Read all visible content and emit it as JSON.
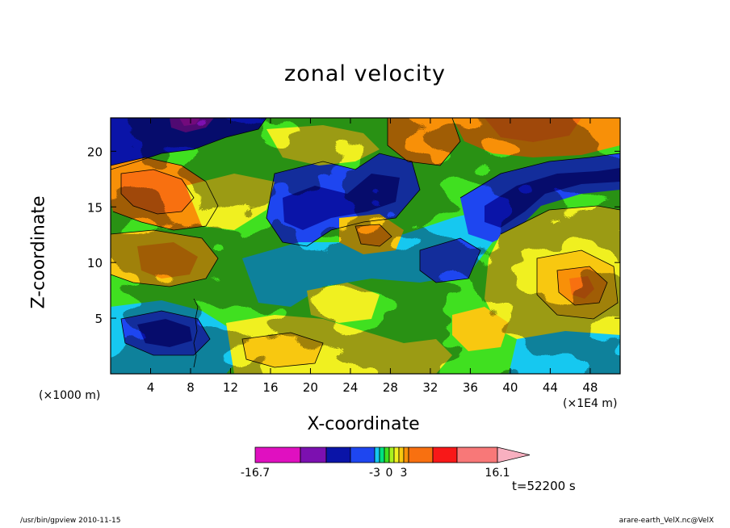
{
  "chart_data": {
    "type": "heatmap",
    "title": "zonal velocity",
    "xlabel": "X-coordinate",
    "ylabel": "Z-coordinate",
    "x_unit_left": "(×1000 m)",
    "x_unit_right": "(×1E4 m)",
    "xlim": [
      0,
      51
    ],
    "ylim": [
      0,
      23
    ],
    "x_ticks": [
      4,
      8,
      12,
      16,
      20,
      24,
      28,
      32,
      36,
      40,
      44,
      48
    ],
    "x_tick_labels": [
      "4",
      "8",
      "12",
      "16",
      "20",
      "24",
      "28",
      "32",
      "36",
      "40",
      "44",
      "48"
    ],
    "y_ticks": [
      5,
      10,
      15,
      20
    ],
    "y_tick_labels": [
      "5",
      "10",
      "15",
      "20"
    ],
    "colorbar": {
      "min": -16.7,
      "max": 16.1,
      "levels": [
        -16.7,
        -12,
        -9,
        -6,
        -3,
        -2,
        -1,
        0,
        1,
        2,
        3,
        6,
        9,
        12,
        16.1
      ],
      "colors": [
        "#e010c0",
        "#7c10b0",
        "#0a14a8",
        "#1e46f0",
        "#16c8f0",
        "#00e080",
        "#40e020",
        "#a8f020",
        "#f0f020",
        "#f8c810",
        "#f89008",
        "#f87010",
        "#f81818",
        "#f87878",
        "#f8b0c0"
      ],
      "tick_labels": [
        "-16.7",
        "-3",
        "0",
        "3",
        "16.1"
      ]
    },
    "time_label": "t=52200 s"
  },
  "footer": {
    "left": "/usr/bin/gpview   2010-11-15",
    "right": "arare-earth_VelX.nc@VelX"
  }
}
